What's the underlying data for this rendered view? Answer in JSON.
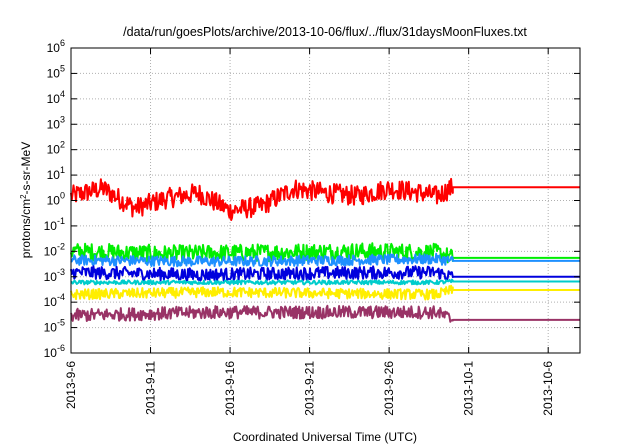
{
  "chart_data": {
    "type": "line",
    "title": "/data/run/goesPlots/archive/2013-10-06/flux/../flux/31daysMoonFluxes.txt",
    "xlabel": "Coordinated Universal Time (UTC)",
    "ylabel": {
      "pre": "protons/cm",
      "sup": "2",
      "post": "-s-sr-MeV"
    },
    "y_scale": "log",
    "ylim": [
      1e-06,
      1000000.0
    ],
    "y_ticks": [
      {
        "value": 1e-06,
        "base": "10",
        "exp": "-6"
      },
      {
        "value": 1e-05,
        "base": "10",
        "exp": "-5"
      },
      {
        "value": 0.0001,
        "base": "10",
        "exp": "-4"
      },
      {
        "value": 0.001,
        "base": "10",
        "exp": "-3"
      },
      {
        "value": 0.01,
        "base": "10",
        "exp": "-2"
      },
      {
        "value": 0.1,
        "base": "10",
        "exp": "-1"
      },
      {
        "value": 1,
        "base": "10",
        "exp": "0"
      },
      {
        "value": 10,
        "base": "10",
        "exp": "1"
      },
      {
        "value": 100,
        "base": "10",
        "exp": "2"
      },
      {
        "value": 1000,
        "base": "10",
        "exp": "3"
      },
      {
        "value": 10000,
        "base": "10",
        "exp": "4"
      },
      {
        "value": 100000,
        "base": "10",
        "exp": "5"
      },
      {
        "value": 1000000,
        "base": "10",
        "exp": "6"
      }
    ],
    "xlim": [
      "2013-09-06",
      "2013-10-08"
    ],
    "x_ticks": [
      "2013-9-6",
      "2013-9-11",
      "2013-9-16",
      "2013-9-21",
      "2013-9-26",
      "2013-10-1",
      "2013-10-6"
    ],
    "x_tick_dates": [
      "2013-09-06",
      "2013-09-11",
      "2013-09-16",
      "2013-09-21",
      "2013-09-26",
      "2013-10-01",
      "2013-10-06"
    ],
    "grid": true,
    "series": [
      {
        "color": "#ff0000",
        "base": 2.0,
        "spread": 2.5,
        "end_value": 3.3,
        "x": [
          "2013-09-06",
          "2013-09-08",
          "2013-09-10",
          "2013-09-12",
          "2013-09-14",
          "2013-09-16",
          "2013-09-18",
          "2013-09-20",
          "2013-09-22",
          "2013-09-24",
          "2013-09-26",
          "2013-09-28",
          "2013-09-29",
          "2013-09-30",
          "2013-10-08"
        ],
        "y": [
          1.5,
          3,
          0.5,
          1.2,
          2,
          0.4,
          0.6,
          3,
          2,
          1.5,
          3,
          2,
          1.5,
          3.3,
          3.3
        ]
      },
      {
        "color": "#00ee00",
        "base": 0.009,
        "spread": 2.2,
        "end_value": 0.0055,
        "x": [
          "2013-09-06",
          "2013-09-12",
          "2013-09-18",
          "2013-09-24",
          "2013-09-29",
          "2013-09-30",
          "2013-10-08"
        ],
        "y": [
          0.01,
          0.008,
          0.009,
          0.01,
          0.009,
          0.0055,
          0.0055
        ]
      },
      {
        "color": "#1e90ff",
        "base": 0.0045,
        "spread": 1.6,
        "end_value": 0.0042,
        "x": [
          "2013-09-06",
          "2013-09-15",
          "2013-09-23",
          "2013-09-29",
          "2013-09-30",
          "2013-10-08"
        ],
        "y": [
          0.0045,
          0.004,
          0.0045,
          0.005,
          0.0042,
          0.0042
        ]
      },
      {
        "color": "#0000dd",
        "base": 0.0015,
        "spread": 1.8,
        "end_value": 0.001,
        "x": [
          "2013-09-06",
          "2013-09-14",
          "2013-09-22",
          "2013-09-29",
          "2013-09-30",
          "2013-10-08"
        ],
        "y": [
          0.0015,
          0.0012,
          0.0014,
          0.0015,
          0.001,
          0.001
        ]
      },
      {
        "color": "#00cccc",
        "base": 0.0006,
        "spread": 1.2,
        "end_value": 0.00065,
        "x": [
          "2013-09-06",
          "2013-09-29",
          "2013-09-30",
          "2013-10-08"
        ],
        "y": [
          0.0006,
          0.0006,
          0.00065,
          0.00065
        ]
      },
      {
        "color": "#ffee00",
        "base": 0.00022,
        "spread": 1.6,
        "end_value": 0.0003,
        "x": [
          "2013-09-06",
          "2013-09-15",
          "2013-09-29",
          "2013-09-30",
          "2013-10-08"
        ],
        "y": [
          0.0002,
          0.00025,
          0.0002,
          0.0003,
          0.0003
        ]
      },
      {
        "color": "#993366",
        "base": 4e-05,
        "spread": 1.8,
        "end_value": 2e-05,
        "x": [
          "2013-09-06",
          "2013-09-15",
          "2013-09-29",
          "2013-09-30",
          "2013-10-08"
        ],
        "y": [
          3e-05,
          4e-05,
          4e-05,
          2e-05,
          2e-05
        ]
      }
    ]
  }
}
